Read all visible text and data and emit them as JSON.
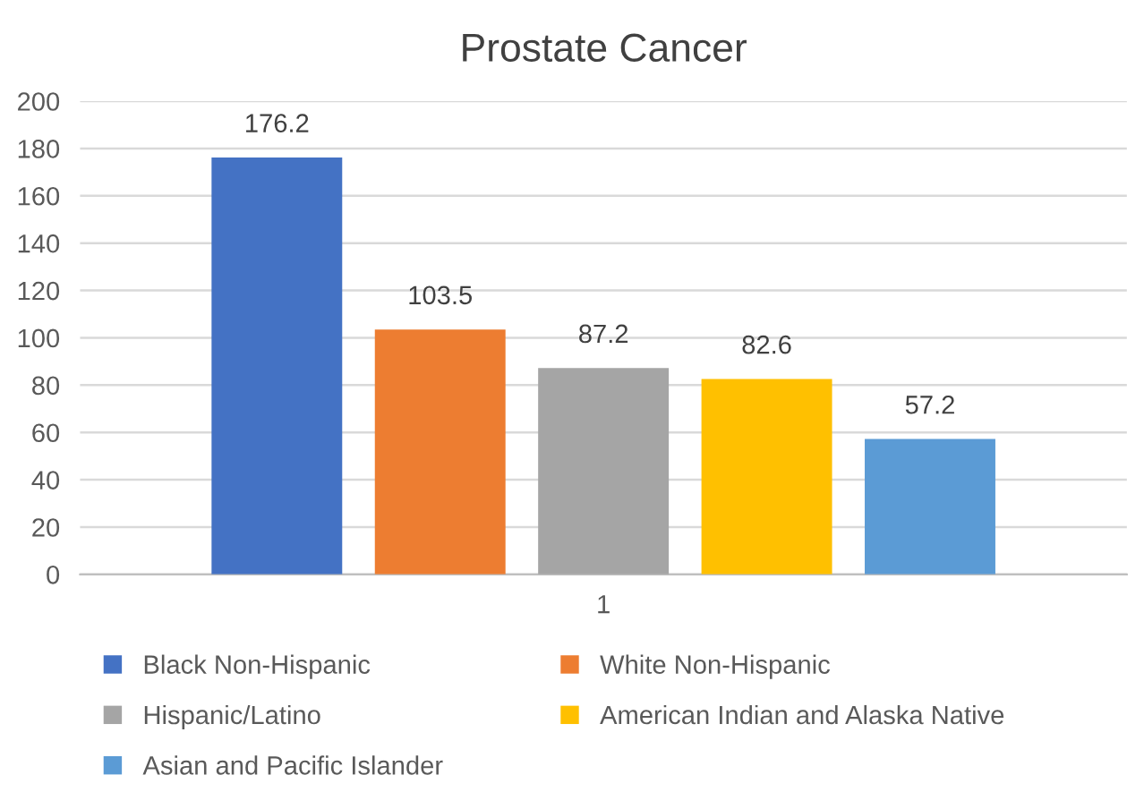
{
  "chart_data": {
    "type": "bar",
    "title": "Prostate Cancer",
    "categories": [
      "1"
    ],
    "series": [
      {
        "name": "Black Non-Hispanic",
        "color": "#4472c4",
        "values": [
          176.2
        ]
      },
      {
        "name": "White Non-Hispanic",
        "color": "#ed7d31",
        "values": [
          103.5
        ]
      },
      {
        "name": "Hispanic/Latino",
        "color": "#a5a5a5",
        "values": [
          87.2
        ]
      },
      {
        "name": "American Indian and Alaska Native",
        "color": "#ffc000",
        "values": [
          82.6
        ]
      },
      {
        "name": "Asian and Pacific Islander",
        "color": "#5b9bd5",
        "values": [
          57.2
        ]
      }
    ],
    "ylim": [
      0,
      200
    ],
    "yticks": [
      0,
      20,
      40,
      60,
      80,
      100,
      120,
      140,
      160,
      180,
      200
    ],
    "grid": "y",
    "legend": "bottom",
    "data_labels": true
  }
}
